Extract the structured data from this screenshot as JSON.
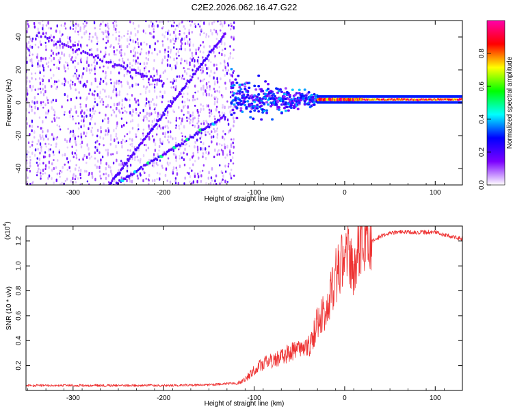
{
  "chart_data": [
    {
      "type": "heatmap",
      "title": "C2E2.2026.062.16.47.G22",
      "xlabel": "Height of straight line (km)",
      "ylabel": "Frequency (Hz)",
      "xlim": [
        -352,
        130
      ],
      "ylim": [
        -50,
        50
      ],
      "xticks": [
        -300,
        -200,
        -100,
        0,
        100
      ],
      "yticks": [
        -40,
        -20,
        0,
        20,
        40
      ],
      "colorbar": {
        "label": "Normalized spectral amplitude",
        "range": [
          0,
          1
        ],
        "ticks": [
          0.0,
          0.2,
          0.4,
          0.6,
          0.8
        ],
        "tick_labels": [
          "0.0",
          "0.2",
          "0.4",
          "0.6",
          "0.8"
        ],
        "colormap": [
          "#ffffff",
          "#7b00ff",
          "#0000ff",
          "#00ffff",
          "#00ff00",
          "#ffff00",
          "#ff0000",
          "#ff00aa"
        ]
      },
      "features": {
        "noise_region_x": [
          -352,
          -122
        ],
        "noise_density": 0.35,
        "descending_track": {
          "x": [
            -260,
            -132
          ],
          "y": [
            -50,
            42
          ]
        },
        "rising_track": {
          "x": [
            -260,
            -132
          ],
          "y": [
            -52,
            -8
          ]
        },
        "transition_x": [
          -125,
          -30
        ],
        "steady_line": {
          "x": [
            -30,
            130
          ],
          "y": 2
        }
      }
    },
    {
      "type": "line",
      "xlabel": "Height of straight line (km)",
      "ylabel": "SNR (10 * v/v)",
      "y_multiplier": "(x10",
      "y_multiplier_exp": "4",
      "y_multiplier_close": ")",
      "xlim": [
        -352,
        130
      ],
      "ylim": [
        0,
        1.32
      ],
      "xticks": [
        -300,
        -200,
        -100,
        0,
        100
      ],
      "yticks": [
        0.2,
        0.4,
        0.6,
        0.8,
        1.0,
        1.2
      ],
      "ytick_labels": [
        "0.2",
        "0.4",
        "0.6",
        "0.8",
        "1.0",
        "1.2"
      ],
      "series": [
        {
          "name": "SNR",
          "color": "#ee3333",
          "x": [
            -352,
            -300,
            -200,
            -150,
            -120,
            -110,
            -100,
            -90,
            -80,
            -70,
            -60,
            -50,
            -40,
            -35,
            -30,
            -25,
            -20,
            -15,
            -10,
            -5,
            0,
            5,
            10,
            15,
            20,
            30,
            40,
            50,
            60,
            80,
            100,
            110,
            120,
            130
          ],
          "y": [
            0.03,
            0.03,
            0.03,
            0.035,
            0.05,
            0.08,
            0.15,
            0.2,
            0.22,
            0.25,
            0.28,
            0.3,
            0.32,
            0.4,
            0.5,
            0.55,
            0.6,
            0.75,
            0.85,
            0.95,
            1.0,
            1.05,
            0.8,
            1.12,
            1.15,
            1.2,
            1.24,
            1.26,
            1.27,
            1.27,
            1.27,
            1.25,
            1.23,
            1.22
          ]
        }
      ]
    }
  ]
}
